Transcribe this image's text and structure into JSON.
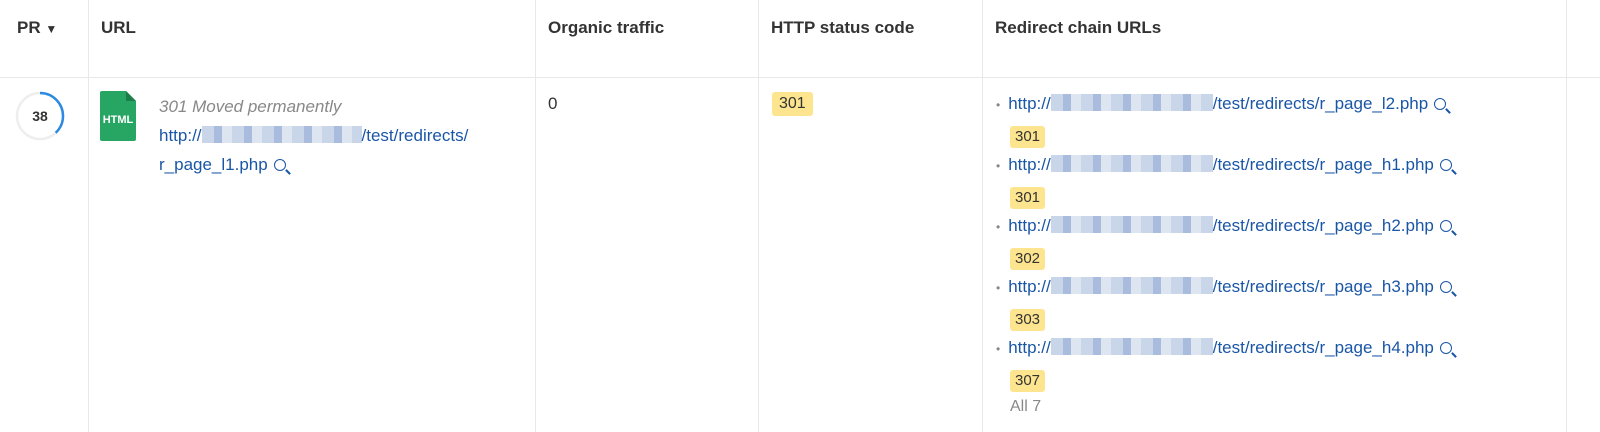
{
  "header": {
    "pr": "PR",
    "url": "URL",
    "organic": "Organic traffic",
    "status": "HTTP status code",
    "chain": "Redirect chain URLs"
  },
  "row": {
    "pr": "38",
    "pr_value": 38,
    "file_type": "HTML",
    "status_text": "301 Moved permanently",
    "url_prefix": "http://",
    "url_suffix": "/test/redirects/",
    "url_line2": "r_page_l1.php",
    "organic": "0",
    "http_status": "301",
    "chain": [
      {
        "prefix": "http://",
        "suffix": "/test/redirects/r_page_l2.php",
        "code": "301"
      },
      {
        "prefix": "http://",
        "suffix": "/test/redirects/r_page_h1.php",
        "code": "301"
      },
      {
        "prefix": "http://",
        "suffix": "/test/redirects/r_page_h2.php",
        "code": "302"
      },
      {
        "prefix": "http://",
        "suffix": "/test/redirects/r_page_h3.php",
        "code": "303"
      },
      {
        "prefix": "http://",
        "suffix": "/test/redirects/r_page_h4.php",
        "code": "307"
      }
    ],
    "all_label": "All 7"
  },
  "colors": {
    "link": "#1a56a6",
    "badge": "#fde58f",
    "html_icon": "#27a563",
    "pr_ring": "#2d8ae2"
  }
}
